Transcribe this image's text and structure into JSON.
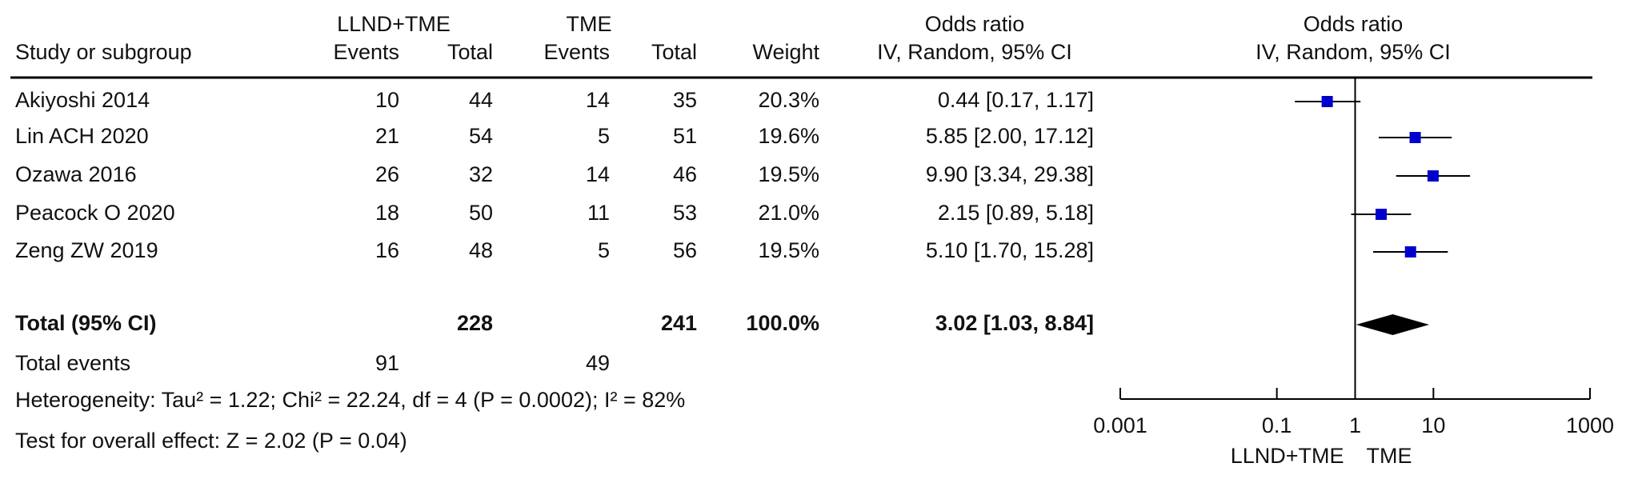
{
  "table": {
    "group_headers": [
      "LLND+TME",
      "TME"
    ],
    "or_header": "Odds ratio",
    "or_subheader": "IV, Random, 95% CI",
    "headers": [
      "Study or subgroup",
      "Events",
      "Total",
      "Events",
      "Total",
      "Weight"
    ],
    "rows": [
      [
        "10",
        "44",
        "14",
        "35",
        "20.3%"
      ],
      [
        "21",
        "54",
        "5",
        "51",
        "19.6%"
      ],
      [
        "26",
        "32",
        "14",
        "46",
        "19.5%"
      ],
      [
        "18",
        "50",
        "11",
        "53",
        "21.0%"
      ],
      [
        "16",
        "48",
        "5",
        "56",
        "19.5%"
      ]
    ],
    "total_row": [
      "228",
      "241",
      "100.0%"
    ],
    "total_events": {
      "label": "Total events",
      "values": [
        "91",
        "49"
      ]
    },
    "heterogeneity": "Heterogeneity: Tau² = 1.22; Chi² = 22.24, df = 4 (P = 0.0002); I² = 82%",
    "overall_effect": "Test for overall effect: Z = 2.02 (P = 0.04)"
  },
  "chart_data": {
    "type": "forest",
    "title": "Odds ratio",
    "subtitle": "IV, Random, 95% CI",
    "categories": [
      "Akiyoshi 2014",
      "Lin ACH 2020",
      "Ozawa 2016",
      "Peacock O 2020",
      "Zeng ZW 2019"
    ],
    "values": [
      0.44,
      5.85,
      9.9,
      2.15,
      5.1
    ],
    "lower": [
      0.17,
      2.0,
      3.34,
      0.89,
      1.7
    ],
    "upper": [
      1.17,
      17.12,
      29.38,
      5.18,
      15.28
    ],
    "value_labels": [
      "0.44 [0.17, 1.17]",
      "5.85 [2.00, 17.12]",
      "9.90 [3.34, 29.38]",
      "2.15 [0.89, 5.18]",
      "5.10 [1.70, 15.28]"
    ],
    "total": {
      "label": "Total (95% CI)",
      "value": 3.02,
      "lower": 1.03,
      "upper": 8.84,
      "value_label": "3.02 [1.03, 8.84]"
    },
    "xlim": [
      0.001,
      1000
    ],
    "xticks": [
      0.001,
      0.1,
      1,
      10,
      1000
    ],
    "log": true,
    "reference": 1,
    "favours": [
      "LLND+TME",
      "TME"
    ],
    "color": "#0000cc"
  }
}
